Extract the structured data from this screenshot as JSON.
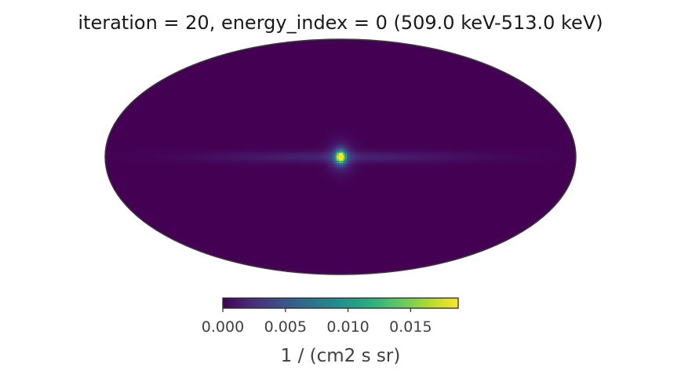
{
  "chart_data": {
    "type": "heatmap",
    "projection": "mollweide",
    "title": "iteration = 20, energy_index = 0 (509.0 keV-513.0 keV)",
    "colormap": "viridis",
    "colorbar": {
      "label": "1 / (cm2 s sr)",
      "vmin": 0.0,
      "vmax": 0.0188,
      "ticks": [
        0.0,
        0.005,
        0.01,
        0.015
      ],
      "tick_labels": [
        "0.000",
        "0.005",
        "0.010",
        "0.015"
      ],
      "placement": "bottom-center"
    },
    "sources": [
      {
        "lon_deg": 0,
        "lat_deg": 0,
        "peak": 0.0188,
        "sigma_deg": 2.6
      },
      {
        "lon_deg": 0,
        "lat_deg": 0,
        "peak": 0.0032,
        "sigma_deg": 6.5
      }
    ],
    "disk": {
      "peak": 0.0018,
      "lat_sigma_deg": 2.5,
      "lon_sigma_deg": 70
    },
    "background": 0.0
  }
}
